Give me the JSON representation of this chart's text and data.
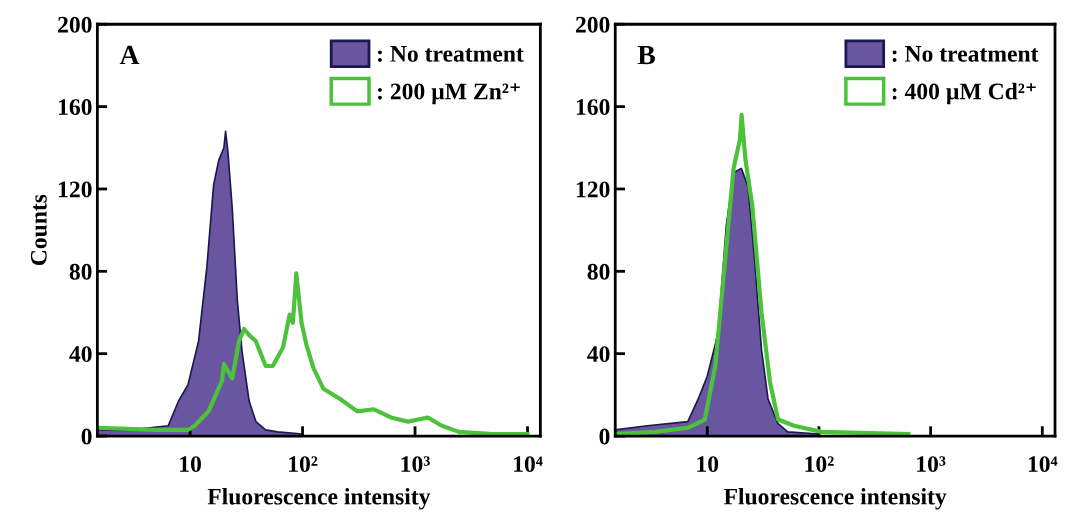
{
  "chart_data": [
    {
      "type": "step",
      "title": "A",
      "xlabel": "Fluorescence intensity",
      "ylabel": "Counts",
      "log": "x",
      "legend": "top right",
      "xlim": [
        1.5,
        13000
      ],
      "xticks": [
        10,
        {
          "value": 100,
          "label": "10²"
        },
        {
          "value": 1000,
          "label": "10³"
        },
        {
          "value": 10000,
          "label": "10⁴"
        }
      ],
      "ylim": [
        0,
        200
      ],
      "yticks": [
        0,
        40,
        80,
        120,
        160,
        200
      ],
      "series": [
        {
          "name": ": No treatment",
          "type": "area",
          "color": "#6a55a0",
          "x": [
            1.5,
            3,
            6.4,
            7.9,
            9.6,
            11.9,
            14.1,
            16.2,
            18,
            20,
            20.7,
            21.7,
            23.7,
            26.3,
            29,
            33.5,
            38.5,
            47,
            60,
            100
          ],
          "values": [
            3,
            3,
            5,
            17,
            25,
            46,
            82,
            122,
            134,
            140,
            148,
            138,
            111,
            66,
            41,
            17,
            7,
            3,
            2,
            1
          ]
        },
        {
          "name": ": 200 µM Zn²⁺",
          "color": "#4cc23a",
          "x": [
            1.5,
            5,
            9.6,
            11,
            14.6,
            19.3,
            20,
            23.7,
            27.2,
            30.2,
            33.5,
            38.5,
            47,
            54.4,
            67,
            76.8,
            82,
            88,
            98,
            108.6,
            125,
            153,
            216,
            306,
            431,
            610,
            866,
            1300,
            1730,
            2450,
            4900,
            10000
          ],
          "values": [
            4,
            3,
            3,
            5,
            12,
            27,
            35,
            28,
            46,
            52,
            49,
            46,
            34,
            34,
            43,
            59,
            55,
            79,
            55,
            44,
            33,
            23,
            18,
            12,
            13,
            9,
            7,
            9,
            5,
            2,
            1,
            1
          ]
        }
      ]
    },
    {
      "type": "step",
      "title": "B",
      "xlabel": "Fluorescence intensity",
      "log": "x",
      "legend": "top right",
      "xlim": [
        1.5,
        13000
      ],
      "xticks": [
        10,
        {
          "value": 100,
          "label": "10²"
        },
        {
          "value": 1000,
          "label": "10³"
        },
        {
          "value": 10000,
          "label": "10⁴"
        }
      ],
      "ylim": [
        0,
        200
      ],
      "yticks": [
        0,
        40,
        80,
        120,
        160,
        200
      ],
      "series": [
        {
          "name": ": No treatment",
          "type": "area",
          "color": "#6a55a0",
          "x": [
            1.5,
            2.9,
            6.7,
            8.3,
            10,
            12.5,
            14.8,
            17.2,
            20.2,
            23.2,
            26.5,
            30.6,
            35,
            43,
            52.6,
            100
          ],
          "values": [
            3,
            5,
            7,
            18,
            29,
            50,
            102,
            128,
            130,
            121,
            86,
            42,
            18,
            6,
            2,
            1
          ]
        },
        {
          "name": ": 400 µM Cd²⁺",
          "color": "#4cc23a",
          "x": [
            1.5,
            3.4,
            6.7,
            9.5,
            11.8,
            14.3,
            17.2,
            19.6,
            20.3,
            22,
            25.3,
            30.6,
            36.5,
            43,
            60,
            105,
            630
          ],
          "values": [
            1,
            2,
            4,
            8,
            34,
            83,
            130,
            144,
            156,
            134,
            112,
            60,
            26,
            8,
            5,
            2,
            1
          ]
        }
      ]
    }
  ]
}
